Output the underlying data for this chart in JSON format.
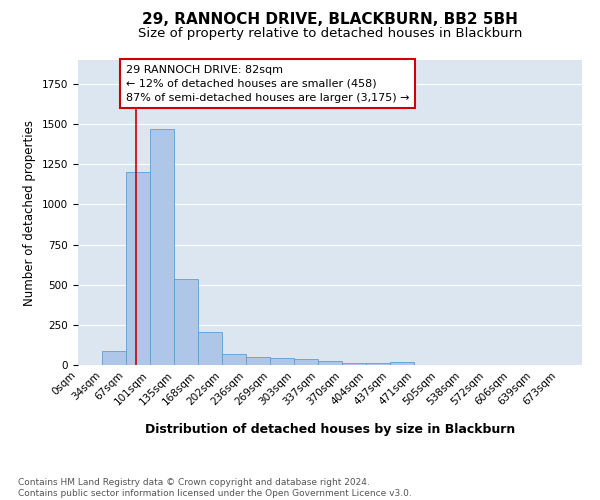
{
  "title1": "29, RANNOCH DRIVE, BLACKBURN, BB2 5BH",
  "title2": "Size of property relative to detached houses in Blackburn",
  "xlabel": "Distribution of detached houses by size in Blackburn",
  "ylabel": "Number of detached properties",
  "bin_labels": [
    "0sqm",
    "34sqm",
    "67sqm",
    "101sqm",
    "135sqm",
    "168sqm",
    "202sqm",
    "236sqm",
    "269sqm",
    "303sqm",
    "337sqm",
    "370sqm",
    "404sqm",
    "437sqm",
    "471sqm",
    "505sqm",
    "538sqm",
    "572sqm",
    "606sqm",
    "639sqm",
    "673sqm"
  ],
  "bin_edges": [
    0,
    34,
    67,
    101,
    135,
    168,
    202,
    236,
    269,
    303,
    337,
    370,
    404,
    437,
    471,
    505,
    538,
    572,
    606,
    639,
    673,
    707
  ],
  "bar_values": [
    0,
    90,
    1200,
    1470,
    535,
    205,
    70,
    48,
    42,
    35,
    25,
    15,
    12,
    18,
    0,
    0,
    0,
    0,
    0,
    0,
    0
  ],
  "bar_color": "#aec6e8",
  "bar_edge_color": "#5a9fd4",
  "grid_color": "#ffffff",
  "bg_color": "#dce6f0",
  "property_size": 82,
  "red_line_color": "#cc0000",
  "annotation_line1": "29 RANNOCH DRIVE: 82sqm",
  "annotation_line2": "← 12% of detached houses are smaller (458)",
  "annotation_line3": "87% of semi-detached houses are larger (3,175) →",
  "annotation_box_color": "#ffffff",
  "annotation_box_edge": "#cc0000",
  "footer_text": "Contains HM Land Registry data © Crown copyright and database right 2024.\nContains public sector information licensed under the Open Government Licence v3.0.",
  "ylim": [
    0,
    1900
  ],
  "title_fontsize": 11,
  "subtitle_fontsize": 9.5,
  "xlabel_fontsize": 9,
  "ylabel_fontsize": 8.5,
  "tick_fontsize": 7.5,
  "annot_fontsize": 8,
  "footer_fontsize": 6.5
}
